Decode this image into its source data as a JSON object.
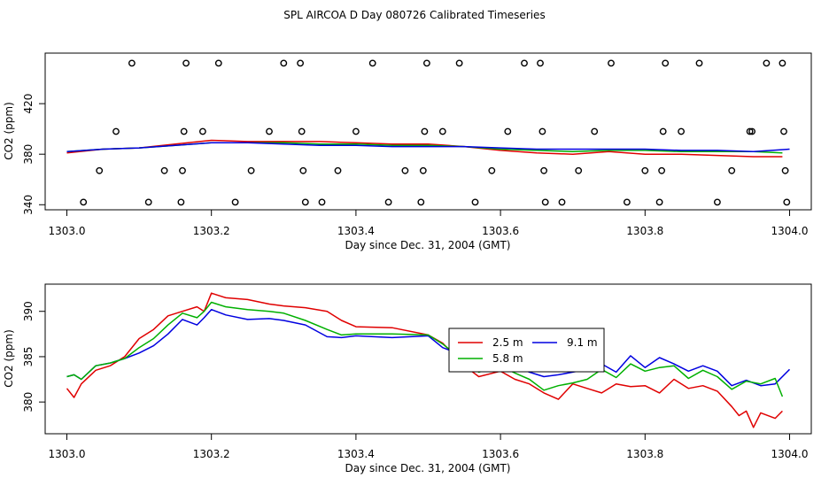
{
  "title": "SPL AIRCOA D  Day 080726  Calibrated Timeseries",
  "chart_data": [
    {
      "type": "line",
      "panel": "top",
      "xlabel": "Day since Dec. 31, 2004 (GMT)",
      "ylabel": "CO2 (ppm)",
      "xlim": [
        1302.97,
        1304.03
      ],
      "ylim": [
        336,
        460
      ],
      "xticks": [
        1303.0,
        1303.2,
        1303.4,
        1303.6,
        1303.8,
        1304.0
      ],
      "xtick_labels": [
        "1303.0",
        "1303.2",
        "1303.4",
        "1303.6",
        "1303.8",
        "1304.0"
      ],
      "yticks": [
        340,
        380,
        420
      ],
      "ytick_labels": [
        "340",
        "380",
        "420"
      ],
      "series": [
        {
          "name": "red",
          "color": "#e00000",
          "x": [
            1303.0,
            1303.05,
            1303.1,
            1303.15,
            1303.2,
            1303.25,
            1303.3,
            1303.35,
            1303.4,
            1303.45,
            1303.5,
            1303.55,
            1303.6,
            1303.65,
            1303.7,
            1303.75,
            1303.8,
            1303.85,
            1303.9,
            1303.95,
            1303.99
          ],
          "y": [
            381,
            384,
            385,
            388,
            391,
            390,
            390,
            390,
            389,
            388,
            388,
            386,
            383,
            381,
            380,
            382,
            380,
            380,
            379,
            378,
            378
          ]
        },
        {
          "name": "green",
          "color": "#00b000",
          "x": [
            1303.0,
            1303.05,
            1303.1,
            1303.15,
            1303.2,
            1303.25,
            1303.3,
            1303.35,
            1303.4,
            1303.45,
            1303.5,
            1303.55,
            1303.6,
            1303.65,
            1303.7,
            1303.75,
            1303.8,
            1303.85,
            1303.9,
            1303.95,
            1303.99
          ],
          "y": [
            382,
            384,
            385,
            387,
            389,
            389,
            389,
            388,
            388,
            387,
            387,
            386,
            384,
            383,
            382,
            383,
            383,
            382,
            382,
            382,
            381
          ]
        },
        {
          "name": "blue",
          "color": "#0000e0",
          "x": [
            1303.0,
            1303.05,
            1303.1,
            1303.15,
            1303.2,
            1303.25,
            1303.3,
            1303.35,
            1303.4,
            1303.45,
            1303.5,
            1303.55,
            1303.6,
            1303.65,
            1303.7,
            1303.75,
            1303.8,
            1303.85,
            1303.9,
            1303.95,
            1304.0
          ],
          "y": [
            382,
            384,
            385,
            387,
            389,
            389,
            388,
            387,
            387,
            386,
            386,
            386,
            385,
            384,
            384,
            384,
            384,
            383,
            383,
            382,
            384
          ]
        }
      ],
      "markers": {
        "shape": "open circle",
        "x": [
          1303.023,
          1303.045,
          1303.068,
          1303.09,
          1303.113,
          1303.135,
          1303.158,
          1303.16,
          1303.162,
          1303.165,
          1303.188,
          1303.21,
          1303.233,
          1303.255,
          1303.28,
          1303.3,
          1303.323,
          1303.325,
          1303.327,
          1303.33,
          1303.353,
          1303.375,
          1303.4,
          1303.423,
          1303.445,
          1303.468,
          1303.49,
          1303.493,
          1303.495,
          1303.498,
          1303.52,
          1303.543,
          1303.565,
          1303.588,
          1303.61,
          1303.633,
          1303.655,
          1303.658,
          1303.66,
          1303.662,
          1303.685,
          1303.708,
          1303.73,
          1303.753,
          1303.775,
          1303.8,
          1303.82,
          1303.823,
          1303.825,
          1303.828,
          1303.85,
          1303.875,
          1303.9,
          1303.92,
          1303.945,
          1303.948,
          1303.968,
          1303.99,
          1303.992,
          1303.994,
          1303.996
        ],
        "y": [
          342,
          367,
          398,
          452,
          342,
          367,
          342,
          367,
          398,
          452,
          398,
          452,
          342,
          367,
          398,
          452,
          452,
          398,
          367,
          342,
          342,
          367,
          398,
          452,
          342,
          367,
          342,
          367,
          398,
          452,
          398,
          452,
          342,
          367,
          398,
          452,
          452,
          398,
          367,
          342,
          342,
          367,
          398,
          452,
          342,
          367,
          342,
          367,
          398,
          452,
          398,
          452,
          342,
          367,
          398,
          398,
          452,
          452,
          398,
          367,
          342
        ]
      }
    },
    {
      "type": "line",
      "panel": "bottom",
      "xlabel": "Day since Dec. 31, 2004 (GMT)",
      "ylabel": "CO2 (ppm)",
      "xlim": [
        1302.97,
        1304.03
      ],
      "ylim": [
        376.5,
        393.0
      ],
      "xticks": [
        1303.0,
        1303.2,
        1303.4,
        1303.6,
        1303.8,
        1304.0
      ],
      "xtick_labels": [
        "1303.0",
        "1303.2",
        "1303.4",
        "1303.6",
        "1303.8",
        "1304.0"
      ],
      "yticks": [
        380,
        385,
        390
      ],
      "ytick_labels": [
        "380",
        "385",
        "390"
      ],
      "legend": {
        "position": "center",
        "entries": [
          {
            "label": "2.5 m",
            "color": "#e00000"
          },
          {
            "label": "9.1 m",
            "color": "#0000e0"
          },
          {
            "label": "5.8 m",
            "color": "#00b000"
          }
        ]
      },
      "series": [
        {
          "name": "2.5 m",
          "color": "#e00000",
          "x": [
            1303.0,
            1303.01,
            1303.02,
            1303.04,
            1303.06,
            1303.08,
            1303.1,
            1303.12,
            1303.14,
            1303.16,
            1303.18,
            1303.19,
            1303.2,
            1303.22,
            1303.25,
            1303.28,
            1303.3,
            1303.33,
            1303.36,
            1303.38,
            1303.4,
            1303.45,
            1303.5,
            1303.52,
            1303.55,
            1303.57,
            1303.6,
            1303.62,
            1303.64,
            1303.66,
            1303.68,
            1303.7,
            1303.72,
            1303.74,
            1303.76,
            1303.78,
            1303.8,
            1303.82,
            1303.84,
            1303.86,
            1303.88,
            1303.9,
            1303.92,
            1303.93,
            1303.94,
            1303.95,
            1303.96,
            1303.98,
            1303.99
          ],
          "y": [
            381.5,
            380.5,
            382,
            383.5,
            384,
            385,
            387,
            388,
            389.5,
            390,
            390.5,
            390,
            392,
            391.5,
            391.3,
            390.8,
            390.6,
            390.4,
            390,
            389,
            388.3,
            388.2,
            387.4,
            386.5,
            384,
            382.8,
            383.4,
            382.5,
            382,
            381,
            380.3,
            382,
            381.5,
            381,
            382,
            381.7,
            381.8,
            381,
            382.5,
            381.5,
            381.8,
            381.2,
            379.5,
            378.5,
            379,
            377.2,
            378.8,
            378.2,
            379
          ]
        },
        {
          "name": "9.1 m",
          "color": "#0000e0",
          "x": [
            1303.0,
            1303.01,
            1303.02,
            1303.04,
            1303.06,
            1303.08,
            1303.1,
            1303.12,
            1303.14,
            1303.16,
            1303.18,
            1303.19,
            1303.2,
            1303.22,
            1303.25,
            1303.28,
            1303.3,
            1303.33,
            1303.36,
            1303.38,
            1303.4,
            1303.45,
            1303.5,
            1303.52,
            1303.55,
            1303.57,
            1303.6,
            1303.62,
            1303.64,
            1303.66,
            1303.68,
            1303.7,
            1303.72,
            1303.74,
            1303.76,
            1303.78,
            1303.8,
            1303.82,
            1303.84,
            1303.86,
            1303.88,
            1303.9,
            1303.92,
            1303.94,
            1303.96,
            1303.98,
            1304.0
          ],
          "y": [
            382.8,
            383,
            382.5,
            384,
            384.3,
            384.8,
            385.4,
            386.2,
            387.5,
            389.1,
            388.5,
            389.3,
            390.2,
            389.6,
            389.1,
            389.2,
            389.0,
            388.5,
            387.2,
            387.1,
            387.3,
            387.1,
            387.3,
            386.0,
            385.1,
            384.4,
            384.6,
            384.0,
            383.3,
            382.8,
            383.0,
            383.3,
            383.6,
            384.2,
            383.3,
            385.1,
            383.8,
            384.9,
            384.2,
            383.4,
            384.0,
            383.4,
            381.8,
            382.4,
            381.8,
            382.0,
            383.6
          ]
        },
        {
          "name": "5.8 m",
          "color": "#00b000",
          "x": [
            1303.0,
            1303.01,
            1303.02,
            1303.04,
            1303.06,
            1303.08,
            1303.1,
            1303.12,
            1303.14,
            1303.16,
            1303.18,
            1303.19,
            1303.2,
            1303.22,
            1303.25,
            1303.28,
            1303.3,
            1303.33,
            1303.36,
            1303.38,
            1303.4,
            1303.45,
            1303.5,
            1303.52,
            1303.55,
            1303.57,
            1303.6,
            1303.62,
            1303.64,
            1303.66,
            1303.68,
            1303.7,
            1303.72,
            1303.74,
            1303.76,
            1303.78,
            1303.8,
            1303.82,
            1303.84,
            1303.86,
            1303.88,
            1303.9,
            1303.92,
            1303.94,
            1303.96,
            1303.98,
            1303.99
          ],
          "y": [
            382.8,
            383,
            382.5,
            384,
            384.3,
            384.8,
            386,
            387,
            388.5,
            389.8,
            389.3,
            390,
            391,
            390.5,
            390.2,
            390,
            389.8,
            389,
            388,
            387.4,
            387.5,
            387.5,
            387.4,
            386.4,
            384.5,
            383.3,
            384.0,
            383.2,
            382.5,
            381.3,
            381.8,
            382.1,
            382.5,
            383.6,
            382.7,
            384.2,
            383.4,
            383.8,
            384.0,
            382.6,
            383.5,
            382.8,
            381.4,
            382.3,
            382.0,
            382.6,
            380.6
          ]
        }
      ]
    }
  ]
}
